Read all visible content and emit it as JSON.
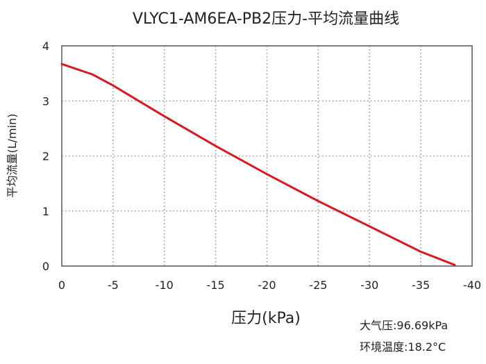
{
  "chart_data": {
    "type": "line",
    "title": "VLYC1-AM6EA-PB2压力-平均流量曲线",
    "xlabel": "压力(kPa)",
    "ylabel": "平均流量(L/min)",
    "xlim": [
      0,
      -40
    ],
    "ylim": [
      0,
      4
    ],
    "x_ticks": [
      0,
      -5,
      -10,
      -15,
      -20,
      -25,
      -30,
      -35,
      -40
    ],
    "y_ticks": [
      0,
      1,
      2,
      3,
      4
    ],
    "grid": true,
    "colors": {
      "series": "#d71920",
      "grid": "#9a9a9a"
    },
    "series": [
      {
        "name": "",
        "x": [
          0,
          -3,
          -5,
          -7.5,
          -10,
          -15,
          -20,
          -25,
          -30,
          -35,
          -38.3
        ],
        "y": [
          3.67,
          3.48,
          3.28,
          3.0,
          2.72,
          2.18,
          1.67,
          1.18,
          0.72,
          0.26,
          0.02
        ]
      }
    ]
  },
  "conditions": {
    "pressure": "大气压:96.69kPa",
    "temperature": "环境温度:18.2°C"
  }
}
